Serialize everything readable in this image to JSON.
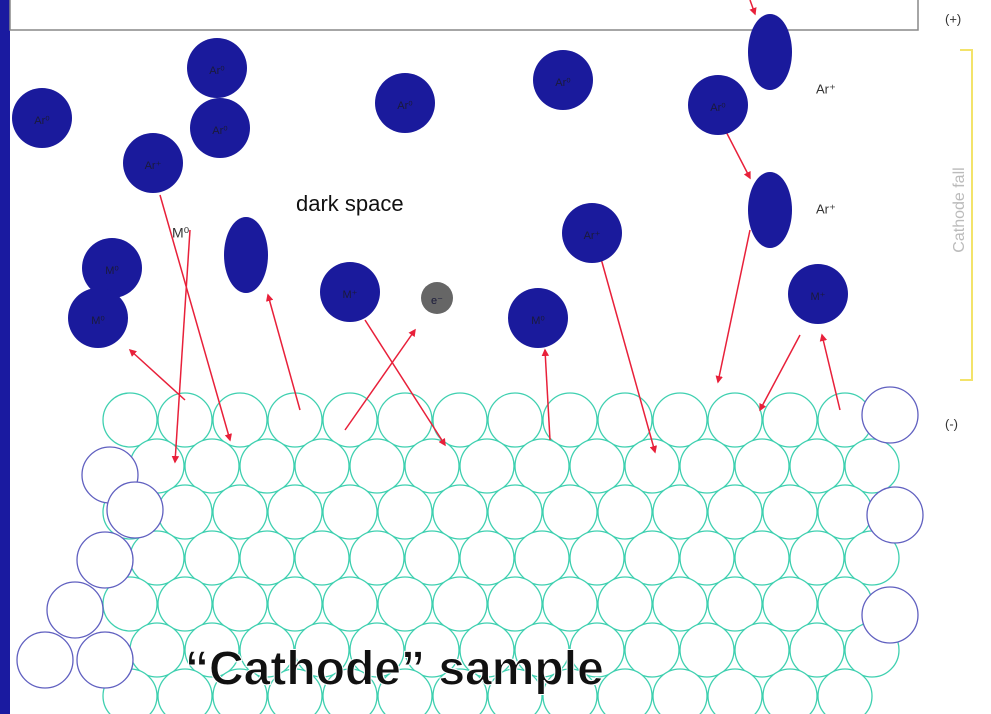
{
  "labels": {
    "plus": "(+)",
    "minus": "(-)",
    "cathode_fall": "Cathode fall",
    "dark_space": "dark space",
    "ion_top": "Ar⁺",
    "ion_mid": "Ar⁺",
    "neutral_metal": "M⁰",
    "sample": "“Cathode” sample"
  },
  "particles": [
    {
      "label": "Ar⁰"
    },
    {
      "label": "Ar⁰"
    },
    {
      "label": "Ar⁰"
    },
    {
      "label": "Ar⁰"
    },
    {
      "label": "Ar⁰"
    },
    {
      "label": "Ar⁰"
    },
    {
      "label": "Ar⁺"
    },
    {
      "label": "M⁰"
    },
    {
      "label": "M⁰"
    },
    {
      "label": "M⁺"
    },
    {
      "label": "e⁻"
    },
    {
      "label": "M⁰"
    },
    {
      "label": "Ar⁺"
    },
    {
      "label": "M⁺"
    }
  ]
}
